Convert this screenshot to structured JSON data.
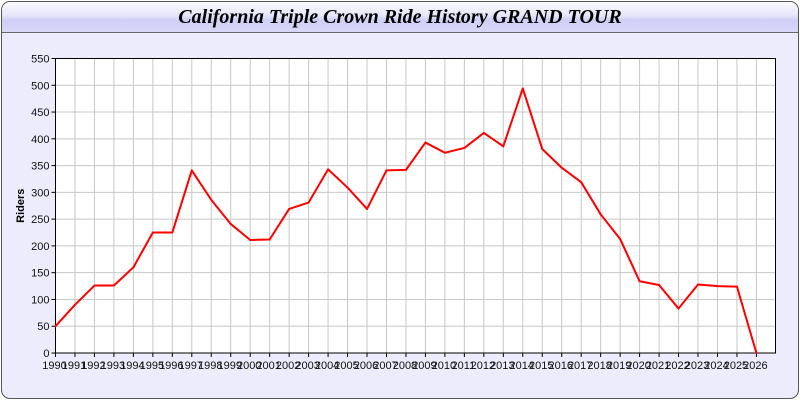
{
  "title": "California Triple Crown Ride History GRAND TOUR",
  "chart_data": {
    "type": "line",
    "title": "California Triple Crown Ride History GRAND TOUR",
    "xlabel": "",
    "ylabel": "Riders",
    "x": [
      1990,
      1991,
      1992,
      1993,
      1994,
      1995,
      1996,
      1997,
      1998,
      1999,
      2000,
      2001,
      2002,
      2003,
      2004,
      2005,
      2006,
      2007,
      2008,
      2009,
      2010,
      2011,
      2012,
      2013,
      2014,
      2015,
      2016,
      2017,
      2018,
      2019,
      2020,
      2021,
      2022,
      2023,
      2024,
      2025,
      2026
    ],
    "series": [
      {
        "values": [
          50,
          90,
          126,
          126,
          160,
          225,
          225,
          341,
          286,
          241,
          211,
          212,
          269,
          281,
          343,
          309,
          269,
          341,
          342,
          393,
          374,
          383,
          411,
          386,
          494,
          381,
          346,
          319,
          259,
          213,
          134,
          127,
          83,
          128,
          125,
          124,
          0
        ],
        "color": "#ff0000"
      }
    ],
    "ylim": [
      0,
      550
    ],
    "yticks": [
      0,
      50,
      100,
      150,
      200,
      250,
      300,
      350,
      400,
      450,
      500,
      550
    ],
    "grid": true,
    "legend": "none"
  }
}
